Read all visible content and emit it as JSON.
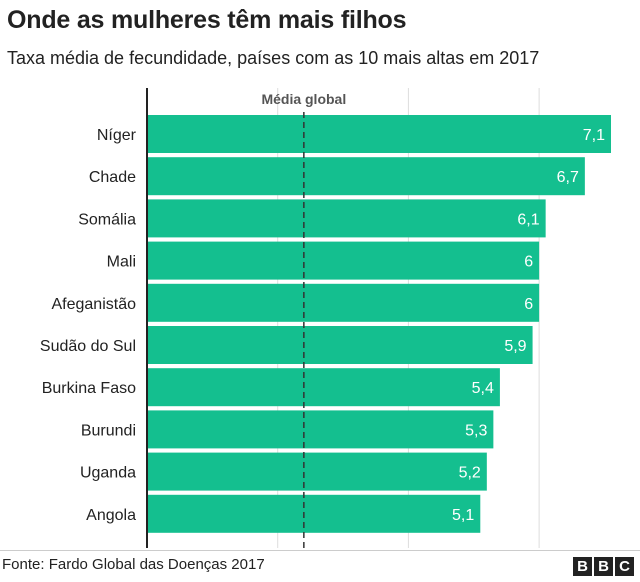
{
  "title": "Onde as mulheres têm mais filhos",
  "subtitle": "Taxa média de fecundidade, países com as 10 mais altas em 2017",
  "source": "Fonte: Fardo Global das Doenças 2017",
  "logo": "BBC",
  "colors": {
    "bar": "#14BF8F",
    "reference_line": "#333333",
    "grid": "#dddddd",
    "axis": "#222222",
    "label_text": "#ffffff"
  },
  "chart_data": {
    "type": "bar",
    "orientation": "horizontal",
    "categories": [
      "Níger",
      "Chade",
      "Somália",
      "Mali",
      "Afeganistão",
      "Sudão do Sul",
      "Burkina Faso",
      "Burundi",
      "Uganda",
      "Angola"
    ],
    "values": [
      7.1,
      6.7,
      6.1,
      6,
      6,
      5.9,
      5.4,
      5.3,
      5.2,
      5.1
    ],
    "value_labels": [
      "7,1",
      "6,7",
      "6,1",
      "6",
      "6",
      "5,9",
      "5,4",
      "5,3",
      "5,2",
      "5,1"
    ],
    "xlim": [
      0,
      7.1
    ],
    "gridlines": [
      2,
      4,
      6
    ],
    "grid": true,
    "reference_line": {
      "label": "Média global",
      "value": 2.4
    }
  }
}
